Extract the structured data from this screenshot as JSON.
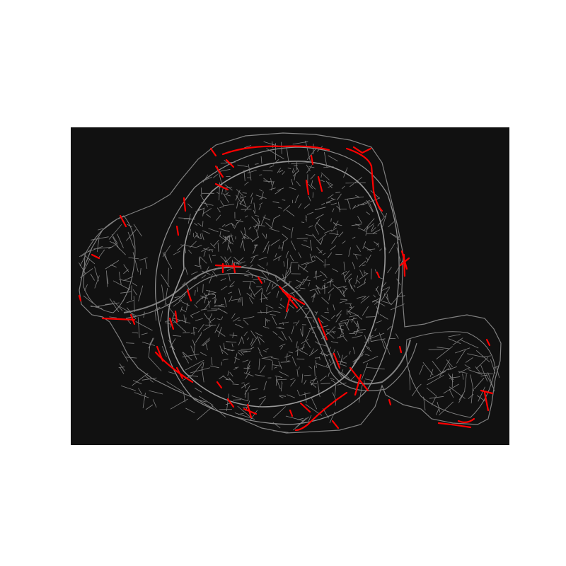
{
  "map": {
    "background_color": "#111111",
    "street_color": "#808080",
    "highlight_color": "#ff0000",
    "highlight_layer": "highlighted-streets",
    "base_layer": "street-network"
  }
}
